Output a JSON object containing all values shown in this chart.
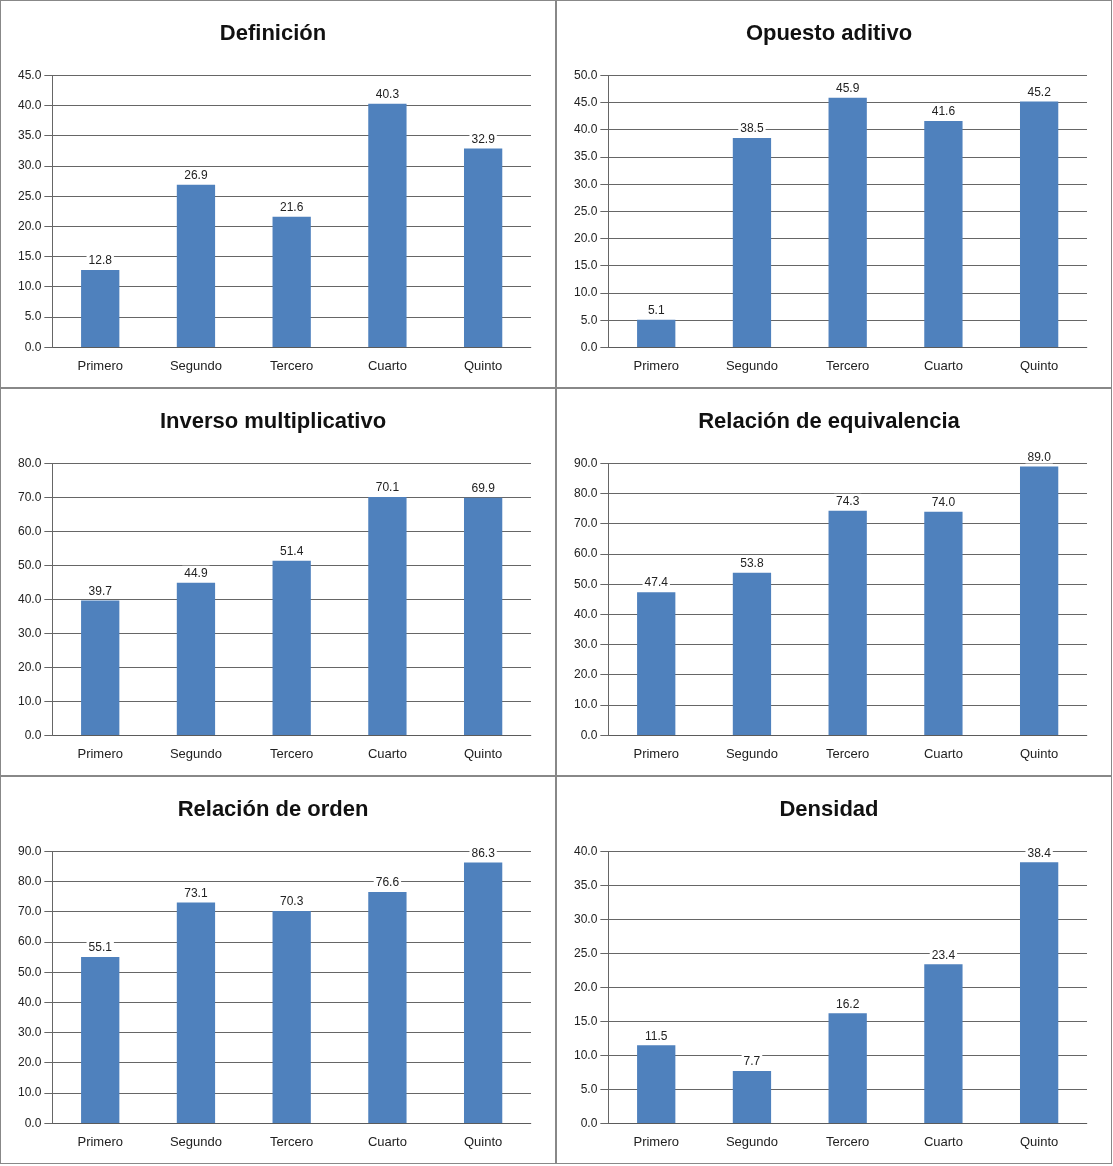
{
  "chart_data": [
    {
      "type": "bar",
      "title": "Definición",
      "categories": [
        "Primero",
        "Segundo",
        "Tercero",
        "Cuarto",
        "Quinto"
      ],
      "values": [
        12.8,
        26.9,
        21.6,
        40.3,
        32.9
      ],
      "value_labels": [
        "12.8",
        "26.9",
        "21.6",
        "40.3",
        "32.9"
      ],
      "color": "#4f81bd",
      "ylim": [
        0,
        45
      ],
      "yticks": [
        {
          "value": 0,
          "label": "0.0"
        },
        {
          "value": 5,
          "label": "5.0"
        },
        {
          "value": 10,
          "label": "10.0"
        },
        {
          "value": 15,
          "label": "15.0"
        },
        {
          "value": 20,
          "label": "20.0"
        },
        {
          "value": 25,
          "label": "25.0"
        },
        {
          "value": 30,
          "label": "30.0"
        },
        {
          "value": 35,
          "label": "35.0"
        },
        {
          "value": 40,
          "label": "40.0"
        },
        {
          "value": 45,
          "label": "45.0"
        }
      ],
      "grid": "y"
    },
    {
      "type": "bar",
      "title": "Opuesto aditivo",
      "categories": [
        "Primero",
        "Segundo",
        "Tercero",
        "Cuarto",
        "Quinto"
      ],
      "values": [
        5.1,
        38.5,
        45.9,
        41.6,
        45.2
      ],
      "value_labels": [
        "5.1",
        "38.5",
        "45.9",
        "41.6",
        "45.2"
      ],
      "color": "#4f81bd",
      "ylim": [
        0,
        50
      ],
      "yticks": [
        {
          "value": 0,
          "label": "0.0"
        },
        {
          "value": 5,
          "label": "5.0"
        },
        {
          "value": 10,
          "label": "10.0"
        },
        {
          "value": 15,
          "label": "15.0"
        },
        {
          "value": 20,
          "label": "20.0"
        },
        {
          "value": 25,
          "label": "25.0"
        },
        {
          "value": 30,
          "label": "30.0"
        },
        {
          "value": 35,
          "label": "35.0"
        },
        {
          "value": 40,
          "label": "40.0"
        },
        {
          "value": 45,
          "label": "45.0"
        },
        {
          "value": 50,
          "label": "50.0"
        }
      ],
      "grid": "y"
    },
    {
      "type": "bar",
      "title": "Inverso multiplicativo",
      "categories": [
        "Primero",
        "Segundo",
        "Tercero",
        "Cuarto",
        "Quinto"
      ],
      "values": [
        39.7,
        44.9,
        51.4,
        70.1,
        69.9
      ],
      "value_labels": [
        "39.7",
        "44.9",
        "51.4",
        "70.1",
        "69.9"
      ],
      "color": "#4f81bd",
      "ylim": [
        0,
        80
      ],
      "yticks": [
        {
          "value": 0,
          "label": "0.0"
        },
        {
          "value": 10,
          "label": "10.0"
        },
        {
          "value": 20,
          "label": "20.0"
        },
        {
          "value": 30,
          "label": "30.0"
        },
        {
          "value": 40,
          "label": "40.0"
        },
        {
          "value": 50,
          "label": "50.0"
        },
        {
          "value": 60,
          "label": "60.0"
        },
        {
          "value": 70,
          "label": "70.0"
        },
        {
          "value": 80,
          "label": "80.0"
        }
      ],
      "grid": "y"
    },
    {
      "type": "bar",
      "title": "Relación de equivalencia",
      "categories": [
        "Primero",
        "Segundo",
        "Tercero",
        "Cuarto",
        "Quinto"
      ],
      "values": [
        47.4,
        53.8,
        74.3,
        74.0,
        89.0
      ],
      "value_labels": [
        "47.4",
        "53.8",
        "74.3",
        "74.0",
        "89.0"
      ],
      "color": "#4f81bd",
      "ylim": [
        0,
        90
      ],
      "yticks": [
        {
          "value": 0,
          "label": "0.0"
        },
        {
          "value": 10,
          "label": "10.0"
        },
        {
          "value": 20,
          "label": "20.0"
        },
        {
          "value": 30,
          "label": "30.0"
        },
        {
          "value": 40,
          "label": "40.0"
        },
        {
          "value": 50,
          "label": "50.0"
        },
        {
          "value": 60,
          "label": "60.0"
        },
        {
          "value": 70,
          "label": "70.0"
        },
        {
          "value": 80,
          "label": "80.0"
        },
        {
          "value": 90,
          "label": "90.0"
        }
      ],
      "grid": "y"
    },
    {
      "type": "bar",
      "title": "Relación de orden",
      "categories": [
        "Primero",
        "Segundo",
        "Tercero",
        "Cuarto",
        "Quinto"
      ],
      "values": [
        55.1,
        73.1,
        70.3,
        76.6,
        86.3
      ],
      "value_labels": [
        "55.1",
        "73.1",
        "70.3",
        "76.6",
        "86.3"
      ],
      "color": "#4f81bd",
      "ylim": [
        0,
        90
      ],
      "yticks": [
        {
          "value": 0,
          "label": "0.0"
        },
        {
          "value": 10,
          "label": "10.0"
        },
        {
          "value": 20,
          "label": "20.0"
        },
        {
          "value": 30,
          "label": "30.0"
        },
        {
          "value": 40,
          "label": "40.0"
        },
        {
          "value": 50,
          "label": "50.0"
        },
        {
          "value": 60,
          "label": "60.0"
        },
        {
          "value": 70,
          "label": "70.0"
        },
        {
          "value": 80,
          "label": "80.0"
        },
        {
          "value": 90,
          "label": "90.0"
        }
      ],
      "grid": "y"
    },
    {
      "type": "bar",
      "title": "Densidad",
      "categories": [
        "Primero",
        "Segundo",
        "Tercero",
        "Cuarto",
        "Quinto"
      ],
      "values": [
        11.5,
        7.7,
        16.2,
        23.4,
        38.4
      ],
      "value_labels": [
        "11.5",
        "7.7",
        "16.2",
        "23.4",
        "38.4"
      ],
      "color": "#4f81bd",
      "ylim": [
        0,
        40
      ],
      "yticks": [
        {
          "value": 0,
          "label": "0.0"
        },
        {
          "value": 5,
          "label": "5.0"
        },
        {
          "value": 10,
          "label": "10.0"
        },
        {
          "value": 15,
          "label": "15.0"
        },
        {
          "value": 20,
          "label": "20.0"
        },
        {
          "value": 25,
          "label": "25.0"
        },
        {
          "value": 30,
          "label": "30.0"
        },
        {
          "value": 35,
          "label": "35.0"
        },
        {
          "value": 40,
          "label": "40.0"
        }
      ],
      "grid": "y"
    }
  ]
}
